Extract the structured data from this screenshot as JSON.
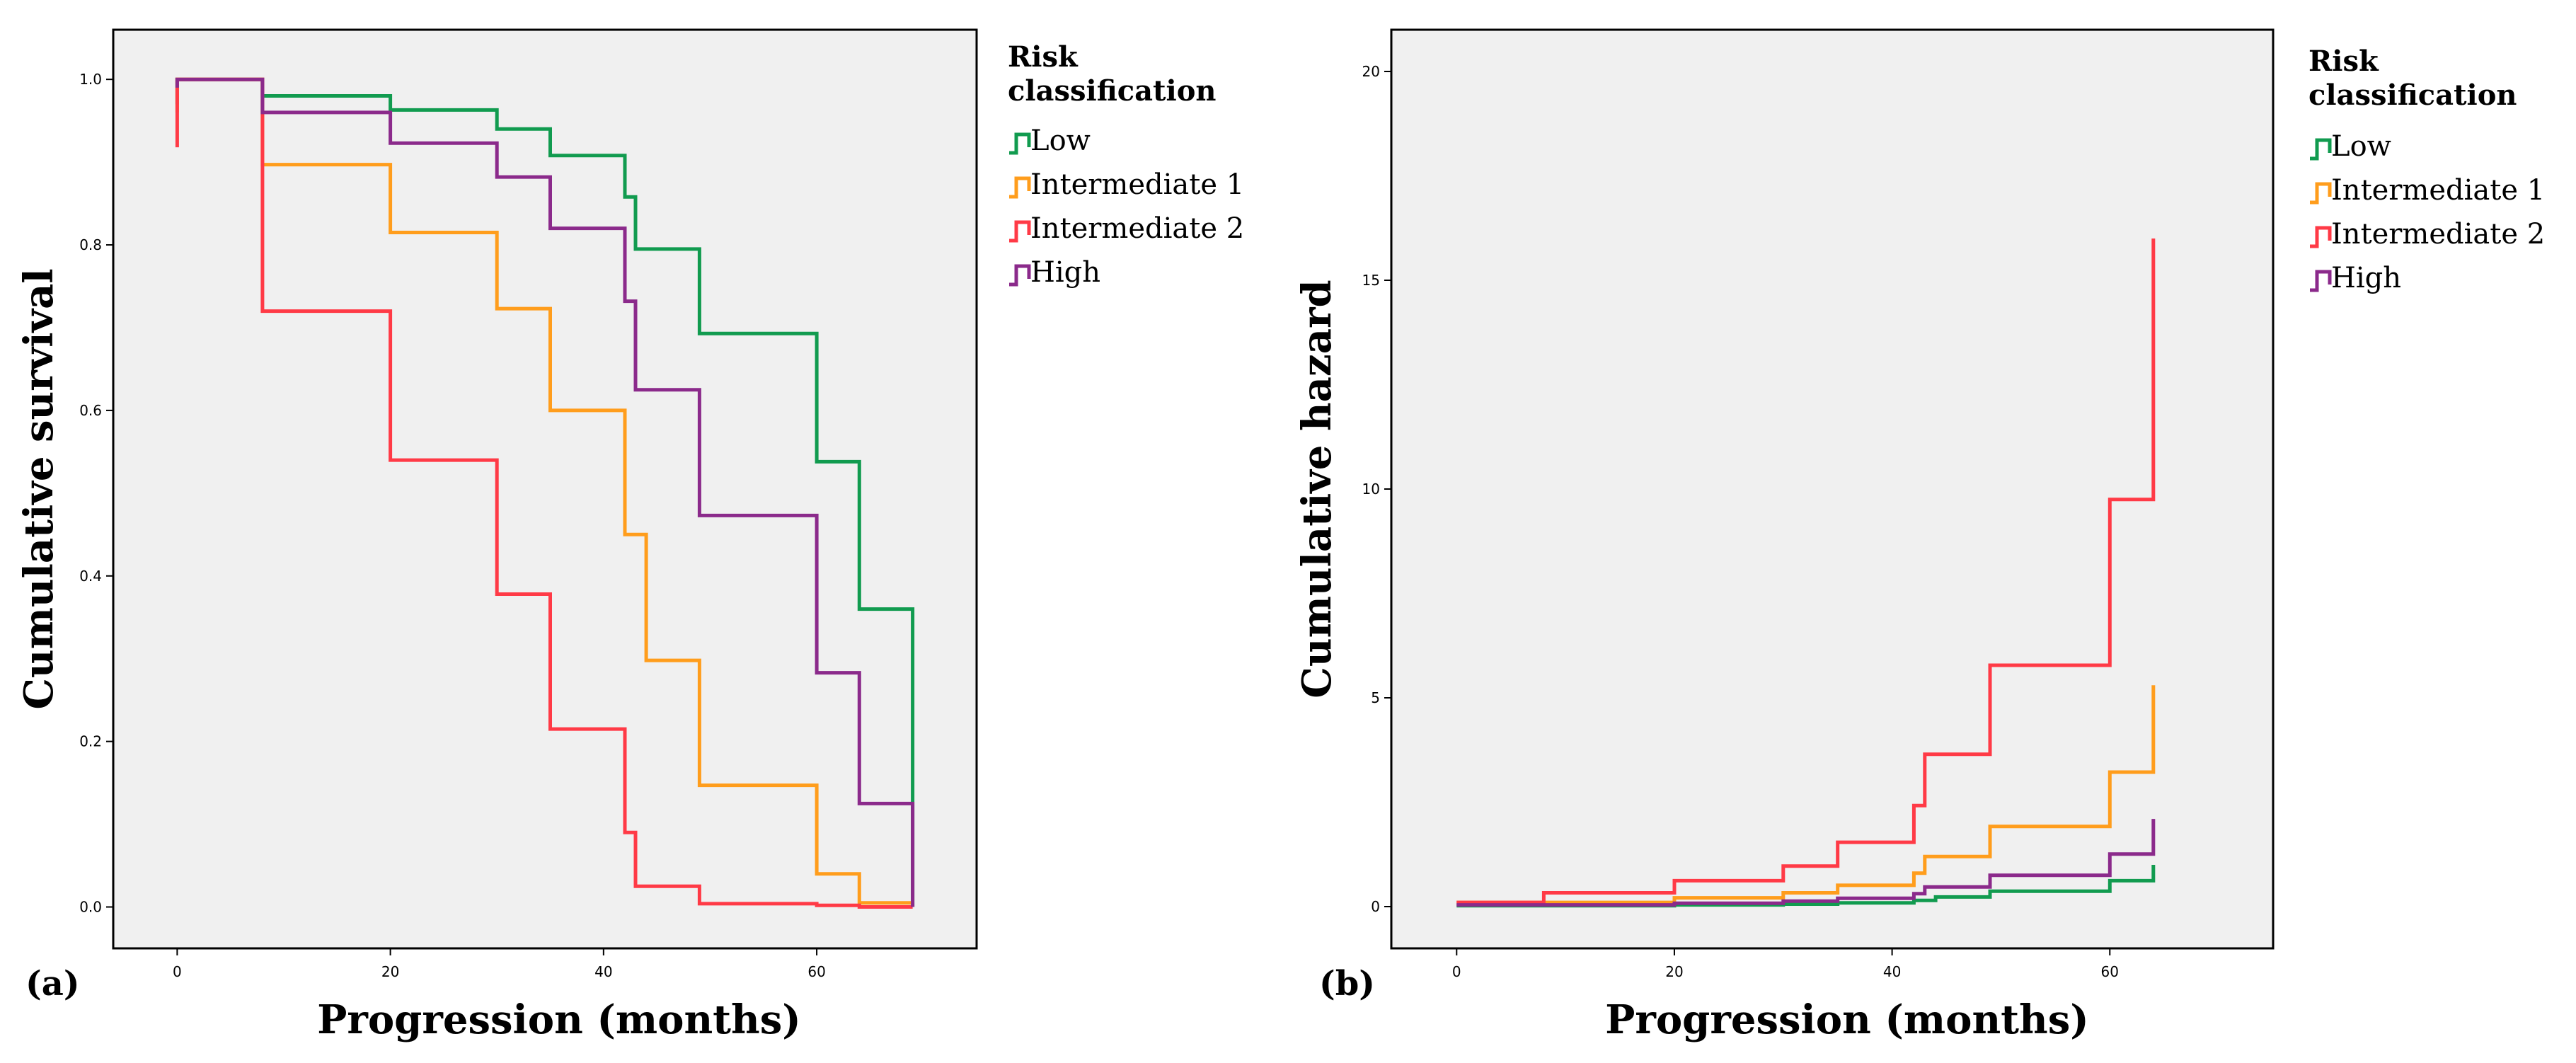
{
  "chart_data": [
    {
      "type": "line",
      "panel_label": "(a)",
      "xlabel": "Progression (months)",
      "ylabel": "Cumulative survival",
      "xlim": [
        -6,
        75
      ],
      "ylim": [
        -0.05,
        1.06
      ],
      "xticks": [
        0,
        20,
        40,
        60
      ],
      "yticks": [
        0.0,
        0.2,
        0.4,
        0.6,
        0.8,
        1.0
      ],
      "ytick_labels": [
        "0.0",
        "0.2",
        "0.4",
        "0.6",
        "0.8",
        "1.0"
      ],
      "legend": {
        "title": "Risk classification",
        "position": "right"
      },
      "series": [
        {
          "name": "Low",
          "color": "#119b4f",
          "step": true,
          "x": [
            0,
            0,
            8,
            20,
            30,
            35,
            42,
            43,
            44,
            49,
            60,
            64,
            69,
            69
          ],
          "y": [
            0.97,
            1.0,
            0.98,
            0.963,
            0.94,
            0.908,
            0.858,
            0.795,
            0.795,
            0.693,
            0.538,
            0.36,
            0.36,
            0.0
          ]
        },
        {
          "name": "Intermediate 1",
          "color": "#ff9d1c",
          "step": true,
          "x": [
            0,
            0,
            8,
            20,
            30,
            35,
            42,
            43,
            44,
            49,
            60,
            64,
            69
          ],
          "y": [
            0.96,
            1.0,
            0.897,
            0.815,
            0.723,
            0.6,
            0.45,
            0.45,
            0.298,
            0.147,
            0.04,
            0.005,
            0.005
          ]
        },
        {
          "name": "Intermediate 2",
          "color": "#ff3a46",
          "step": true,
          "x": [
            0,
            0,
            8,
            20,
            30,
            35,
            42,
            43,
            44,
            49,
            60,
            64,
            69
          ],
          "y": [
            0.918,
            1.0,
            0.72,
            0.54,
            0.378,
            0.215,
            0.09,
            0.025,
            0.025,
            0.004,
            0.002,
            0.0,
            0.0
          ]
        },
        {
          "name": "High",
          "color": "#8b2a8b",
          "step": true,
          "x": [
            0,
            0,
            8,
            20,
            30,
            35,
            42,
            43,
            44,
            49,
            60,
            64,
            69,
            69
          ],
          "y": [
            0.99,
            1.0,
            0.96,
            0.923,
            0.882,
            0.82,
            0.732,
            0.625,
            0.625,
            0.473,
            0.283,
            0.125,
            0.125,
            0.0
          ]
        }
      ]
    },
    {
      "type": "line",
      "panel_label": "(b)",
      "xlabel": "Progression (months)",
      "ylabel": "Cumulative hazard",
      "xlim": [
        -6,
        75
      ],
      "ylim": [
        -1.0,
        21.0
      ],
      "xticks": [
        0,
        20,
        40,
        60
      ],
      "yticks": [
        0,
        5,
        10,
        15,
        20
      ],
      "ytick_labels": [
        "0",
        "5",
        "10",
        "15",
        "20"
      ],
      "legend": {
        "title": "Risk classification",
        "position": "right"
      },
      "series": [
        {
          "name": "Low",
          "color": "#119b4f",
          "step": true,
          "x": [
            0,
            8,
            20,
            30,
            35,
            42,
            44,
            49,
            60,
            64,
            64
          ],
          "y": [
            0.02,
            0.02,
            0.04,
            0.06,
            0.09,
            0.15,
            0.23,
            0.37,
            0.62,
            0.62,
            1.0
          ]
        },
        {
          "name": "Intermediate 1",
          "color": "#ff9d1c",
          "step": true,
          "x": [
            0,
            8,
            20,
            30,
            35,
            42,
            43,
            44,
            49,
            60,
            64,
            64
          ],
          "y": [
            0.1,
            0.1,
            0.21,
            0.33,
            0.51,
            0.8,
            1.2,
            1.2,
            1.92,
            3.22,
            3.22,
            5.3
          ]
        },
        {
          "name": "Intermediate 2",
          "color": "#ff3a46",
          "step": true,
          "x": [
            0,
            8,
            20,
            30,
            35,
            42,
            43,
            44,
            49,
            60,
            64,
            64
          ],
          "y": [
            0.1,
            0.33,
            0.62,
            0.97,
            1.54,
            2.42,
            3.65,
            3.65,
            5.78,
            9.75,
            9.75,
            16.0
          ]
        },
        {
          "name": "High",
          "color": "#8b2a8b",
          "step": true,
          "x": [
            0,
            8,
            20,
            30,
            35,
            42,
            43,
            44,
            49,
            60,
            64,
            64
          ],
          "y": [
            0.04,
            0.04,
            0.08,
            0.13,
            0.2,
            0.31,
            0.47,
            0.47,
            0.75,
            1.26,
            1.26,
            2.1
          ]
        }
      ]
    }
  ]
}
